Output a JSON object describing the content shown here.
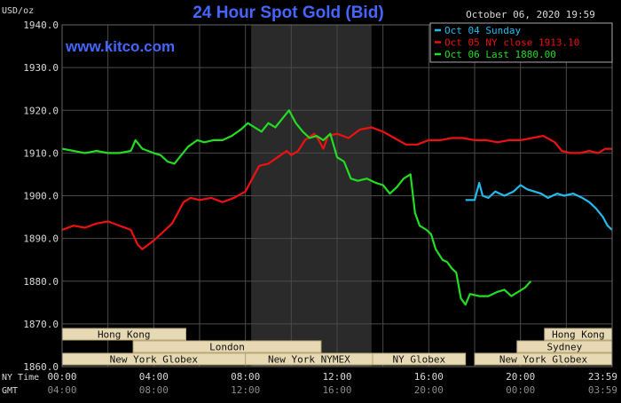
{
  "header": {
    "title": "24 Hour Spot Gold (Bid)",
    "date": "October 06, 2020 19:59",
    "unit": "USD/oz",
    "watermark": "www.kitco.com",
    "ny_time_label": "NY Time",
    "gmt_label": "GMT"
  },
  "colors": {
    "background": "#000000",
    "grid": "#4a4a4a",
    "highlight_band": "#2a2a2a",
    "title": "#4466ff",
    "axis_text": "#d8d8d8",
    "sunday": "#22bbee",
    "close": "#ee1111",
    "last": "#22dd22",
    "session_bar_fill": "#e6d9b3",
    "session_bar_border": "#b8a878",
    "session_text": "#111111"
  },
  "legend": [
    {
      "label": "Oct 04 Sunday",
      "color": "#22bbee"
    },
    {
      "label": "Oct 05 NY close 1913.10",
      "color": "#ee1111"
    },
    {
      "label": "Oct 06 Last 1880.00",
      "color": "#22dd22"
    }
  ],
  "sessions": [
    {
      "label": "Hong Kong",
      "start": 0,
      "end": 5.4,
      "row": 0
    },
    {
      "label": "Hong Kong",
      "start": 21.05,
      "end": 24,
      "row": 0
    },
    {
      "label": "London",
      "start": 3.1,
      "end": 11.3,
      "row": 1
    },
    {
      "label": "Sydney",
      "start": 19.85,
      "end": 24,
      "row": 1
    },
    {
      "label": "New York Globex",
      "start": 0,
      "end": 8.0,
      "row": 2
    },
    {
      "label": "New York NYMEX",
      "start": 8.0,
      "end": 13.55,
      "row": 2
    },
    {
      "label": "NY Globex",
      "start": 13.55,
      "end": 17.6,
      "row": 2
    },
    {
      "label": "New York Globex",
      "start": 18.0,
      "end": 24,
      "row": 2
    }
  ],
  "chart_data": {
    "type": "line",
    "title": "24 Hour Spot Gold (Bid)",
    "ylabel": "USD/oz",
    "xlim": [
      0,
      24
    ],
    "ylim": [
      1860,
      1940
    ],
    "y_ticks": [
      "1860.0",
      "1870.0",
      "1880.0",
      "1890.0",
      "1900.0",
      "1910.0",
      "1920.0",
      "1930.0",
      "1940.0"
    ],
    "x_ticks_ny": [
      "00:00",
      "04:00",
      "08:00",
      "12:00",
      "16:00",
      "20:00",
      "23:59"
    ],
    "x_ticks_gmt": [
      "04:00",
      "08:00",
      "12:00",
      "16:00",
      "20:00",
      "00:00",
      "03:59"
    ],
    "highlight_band_hours": [
      8.25,
      13.5
    ],
    "grid": true,
    "legend_position": "top-right",
    "series": [
      {
        "name": "Oct 04 Sunday",
        "color": "#22bbee",
        "points": [
          [
            17.6,
            1899
          ],
          [
            18.0,
            1899
          ],
          [
            18.1,
            1901
          ],
          [
            18.2,
            1903
          ],
          [
            18.35,
            1900
          ],
          [
            18.6,
            1899.5
          ],
          [
            18.9,
            1901
          ],
          [
            19.3,
            1900
          ],
          [
            19.7,
            1901
          ],
          [
            20.0,
            1902.5
          ],
          [
            20.3,
            1901.5
          ],
          [
            20.6,
            1901
          ],
          [
            20.9,
            1900.5
          ],
          [
            21.2,
            1899.5
          ],
          [
            21.6,
            1900.5
          ],
          [
            21.9,
            1900
          ],
          [
            22.3,
            1900.5
          ],
          [
            22.7,
            1899.5
          ],
          [
            23.0,
            1898.5
          ],
          [
            23.3,
            1897
          ],
          [
            23.6,
            1895
          ],
          [
            23.8,
            1893
          ],
          [
            24.0,
            1892
          ]
        ]
      },
      {
        "name": "Oct 05 NY close 1913.10",
        "color": "#ee1111",
        "points": [
          [
            0,
            1892
          ],
          [
            0.5,
            1893
          ],
          [
            1.0,
            1892.5
          ],
          [
            1.5,
            1893.5
          ],
          [
            2.0,
            1894
          ],
          [
            2.5,
            1893
          ],
          [
            3.0,
            1892
          ],
          [
            3.3,
            1888.5
          ],
          [
            3.5,
            1887.5
          ],
          [
            4.0,
            1889.5
          ],
          [
            4.5,
            1892
          ],
          [
            4.8,
            1893.5
          ],
          [
            5.0,
            1895.5
          ],
          [
            5.3,
            1898.5
          ],
          [
            5.6,
            1899.5
          ],
          [
            6.0,
            1899
          ],
          [
            6.5,
            1899.5
          ],
          [
            7.0,
            1898.5
          ],
          [
            7.5,
            1899.5
          ],
          [
            8.0,
            1901
          ],
          [
            8.3,
            1904
          ],
          [
            8.6,
            1907
          ],
          [
            9.0,
            1907.5
          ],
          [
            9.4,
            1909
          ],
          [
            9.8,
            1910.5
          ],
          [
            10.0,
            1909.5
          ],
          [
            10.3,
            1910.5
          ],
          [
            10.6,
            1913
          ],
          [
            11.0,
            1914.5
          ],
          [
            11.2,
            1913
          ],
          [
            11.4,
            1911
          ],
          [
            11.6,
            1914
          ],
          [
            12.0,
            1914.5
          ],
          [
            12.5,
            1913.5
          ],
          [
            13.0,
            1915.5
          ],
          [
            13.5,
            1916
          ],
          [
            14.0,
            1915
          ],
          [
            14.5,
            1913.5
          ],
          [
            15.0,
            1912
          ],
          [
            15.5,
            1912
          ],
          [
            16.0,
            1913
          ],
          [
            16.5,
            1913
          ],
          [
            17.0,
            1913.5
          ],
          [
            17.5,
            1913.5
          ],
          [
            18.0,
            1913
          ],
          [
            18.5,
            1913
          ],
          [
            19.0,
            1912.5
          ],
          [
            19.5,
            1913
          ],
          [
            20.0,
            1913
          ],
          [
            20.5,
            1913.5
          ],
          [
            21.0,
            1914
          ],
          [
            21.5,
            1912.5
          ],
          [
            21.8,
            1910.5
          ],
          [
            22.2,
            1910
          ],
          [
            22.6,
            1910
          ],
          [
            23.0,
            1910.5
          ],
          [
            23.4,
            1910
          ],
          [
            23.7,
            1911
          ],
          [
            24.0,
            1911
          ]
        ]
      },
      {
        "name": "Oct 06 Last 1880.00",
        "color": "#22dd22",
        "points": [
          [
            0,
            1911
          ],
          [
            0.5,
            1910.5
          ],
          [
            1.0,
            1910
          ],
          [
            1.5,
            1910.5
          ],
          [
            2.0,
            1910
          ],
          [
            2.5,
            1910
          ],
          [
            3.0,
            1910.5
          ],
          [
            3.2,
            1913
          ],
          [
            3.5,
            1911
          ],
          [
            4.0,
            1910
          ],
          [
            4.3,
            1909.5
          ],
          [
            4.6,
            1908
          ],
          [
            4.9,
            1907.5
          ],
          [
            5.2,
            1909.5
          ],
          [
            5.5,
            1911.5
          ],
          [
            5.9,
            1913
          ],
          [
            6.2,
            1912.5
          ],
          [
            6.6,
            1913
          ],
          [
            7.0,
            1913
          ],
          [
            7.4,
            1914
          ],
          [
            7.8,
            1915.5
          ],
          [
            8.1,
            1917
          ],
          [
            8.4,
            1916
          ],
          [
            8.7,
            1915
          ],
          [
            9.0,
            1917
          ],
          [
            9.3,
            1916
          ],
          [
            9.6,
            1918
          ],
          [
            9.9,
            1920
          ],
          [
            10.2,
            1917
          ],
          [
            10.5,
            1915
          ],
          [
            10.8,
            1913.5
          ],
          [
            11.1,
            1914
          ],
          [
            11.4,
            1913
          ],
          [
            11.7,
            1914.5
          ],
          [
            12.0,
            1909
          ],
          [
            12.3,
            1908
          ],
          [
            12.6,
            1904
          ],
          [
            12.9,
            1903.5
          ],
          [
            13.3,
            1904
          ],
          [
            13.7,
            1903
          ],
          [
            14.0,
            1902.5
          ],
          [
            14.3,
            1900.5
          ],
          [
            14.6,
            1902
          ],
          [
            14.9,
            1904
          ],
          [
            15.2,
            1905
          ],
          [
            15.4,
            1896
          ],
          [
            15.6,
            1893
          ],
          [
            15.9,
            1892
          ],
          [
            16.1,
            1891
          ],
          [
            16.3,
            1887.5
          ],
          [
            16.6,
            1885
          ],
          [
            16.8,
            1884.5
          ],
          [
            17.0,
            1883
          ],
          [
            17.2,
            1882
          ],
          [
            17.4,
            1876
          ],
          [
            17.6,
            1874.5
          ],
          [
            17.8,
            1877
          ],
          [
            18.2,
            1876.5
          ],
          [
            18.6,
            1876.5
          ],
          [
            19.0,
            1877.5
          ],
          [
            19.3,
            1878
          ],
          [
            19.6,
            1876.5
          ],
          [
            19.9,
            1877.5
          ],
          [
            20.2,
            1878.5
          ],
          [
            20.45,
            1880
          ]
        ]
      }
    ]
  }
}
